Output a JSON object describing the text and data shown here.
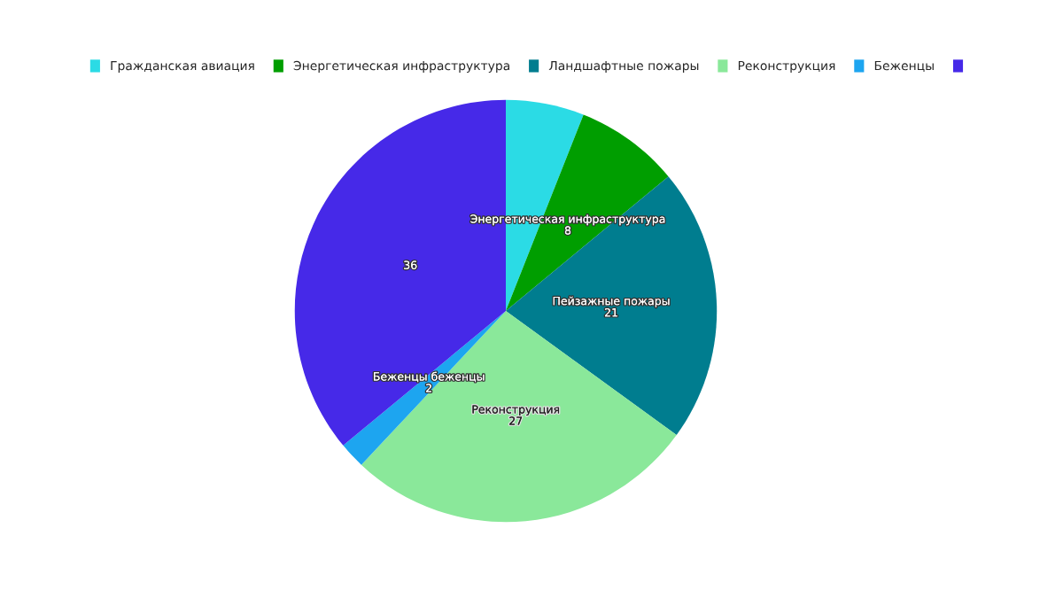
{
  "chart_data": {
    "type": "pie",
    "categories": [
      "Гражданская авиация",
      "Энергетическая инфраструктура",
      "Ландшафтные пожары",
      "Реконструкция",
      "Беженцы",
      null
    ],
    "values": [
      6,
      8,
      21,
      27,
      2,
      36
    ],
    "colors": [
      "#2bdbe5",
      "#009e00",
      "#007d8f",
      "#8ae89a",
      "#1da5f0",
      "#4629e8"
    ],
    "value_labels": [
      null,
      "8",
      "21",
      "27",
      "2",
      "36"
    ],
    "annotations": [
      {
        "text": "Энергетическая инфраструктура",
        "x": "Энергетическая инфраструктура"
      },
      {
        "text": "Пейзажные пожары",
        "x": "Ландшафтные пожары"
      },
      {
        "text": "Реконструкция",
        "x": "Реконструкция"
      },
      {
        "text": "Беженцы беженцы",
        "x": "Беженцы"
      }
    ],
    "legend": "top"
  }
}
